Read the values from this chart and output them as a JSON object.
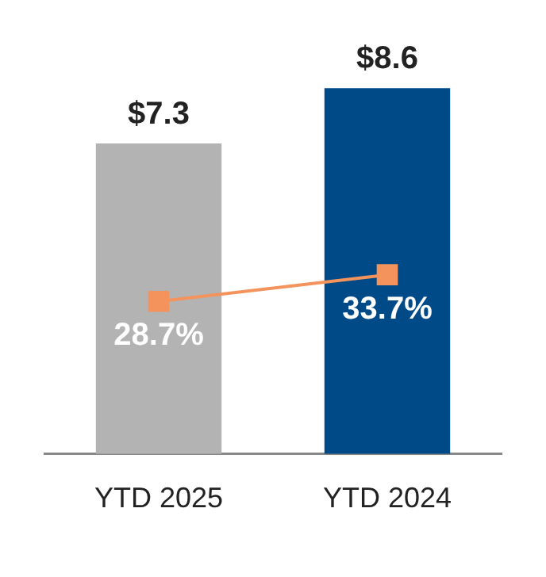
{
  "chart_data": {
    "type": "bar",
    "categories": [
      "YTD 2025",
      "YTD 2024"
    ],
    "tick_labels": "x",
    "grid": false,
    "legend": false,
    "marker": "square",
    "series": [
      {
        "colors": [
          "#b3b3b3",
          "#004a87"
        ],
        "values": [
          7.3,
          8.6
        ],
        "value_labels": [
          "$7.3",
          "$8.6"
        ]
      },
      {
        "type": "line",
        "axis": "y2",
        "color": "#f4945c",
        "values": [
          28.7,
          33.7
        ],
        "value_labels": [
          "28.7%",
          "33.7%"
        ]
      }
    ]
  }
}
